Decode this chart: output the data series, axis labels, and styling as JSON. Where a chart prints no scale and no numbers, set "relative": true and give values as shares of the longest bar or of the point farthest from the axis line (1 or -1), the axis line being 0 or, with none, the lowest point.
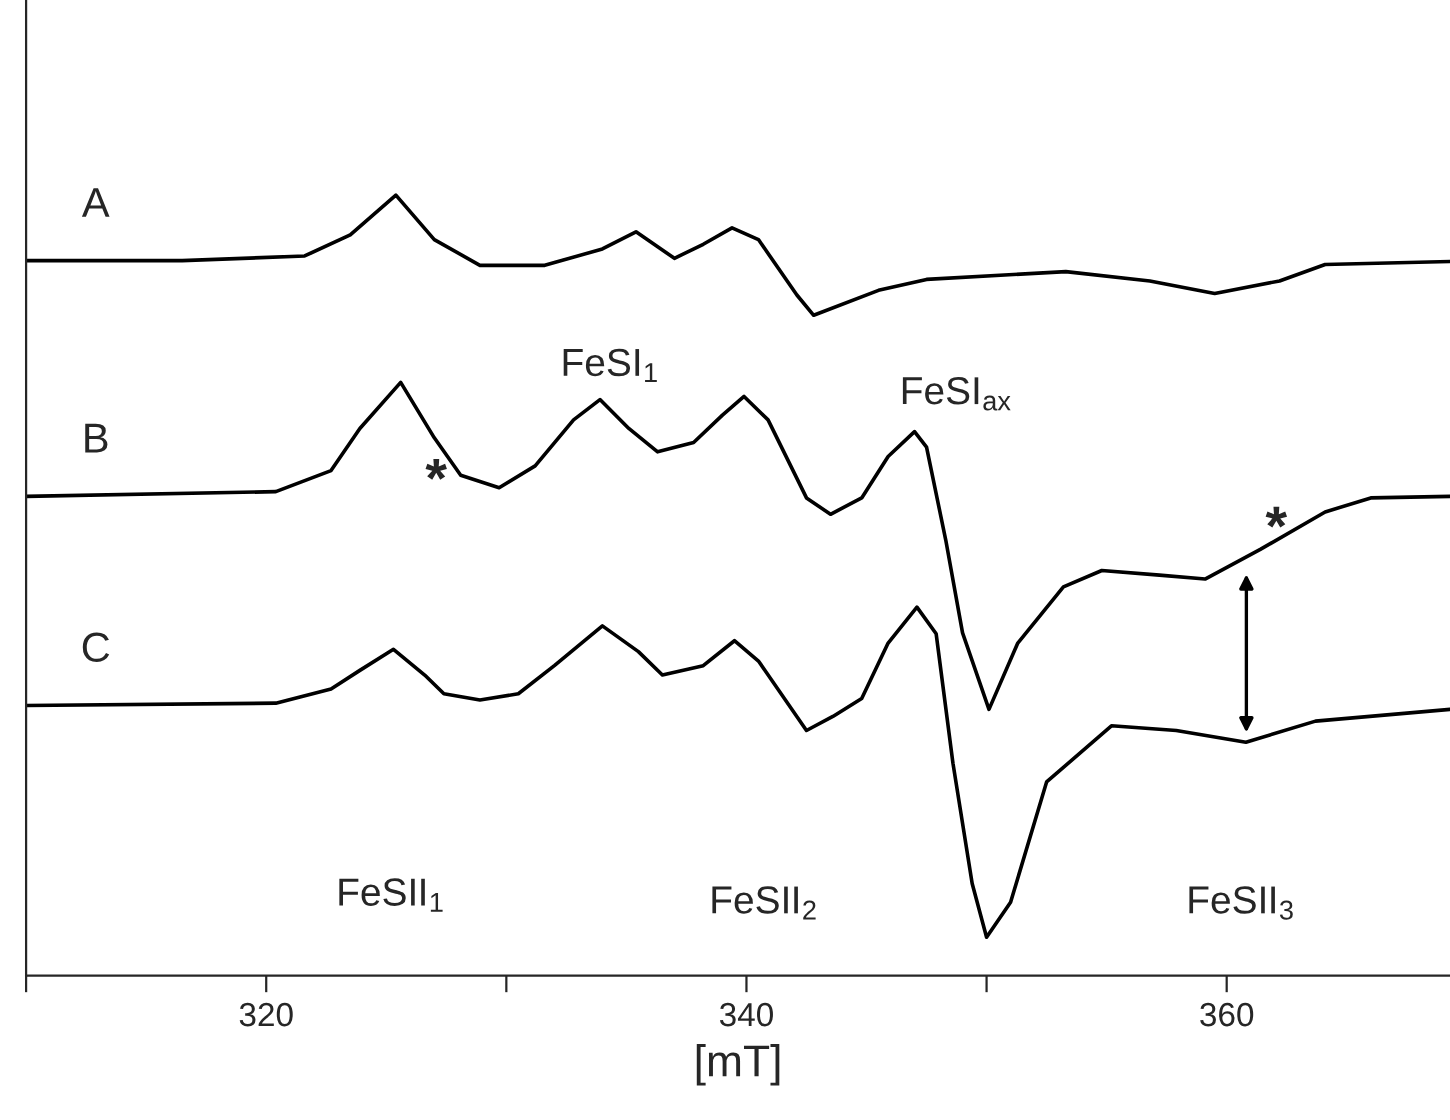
{
  "chart_data": {
    "type": "line",
    "relative": true,
    "xlabel": "[mT]",
    "xlim": [
      310,
      369.3
    ],
    "xticks": [
      {
        "value": 310,
        "label": null
      },
      320,
      {
        "value": 330,
        "label": null
      },
      340,
      {
        "value": 350,
        "label": null
      },
      360
    ],
    "grid": false,
    "legend": false,
    "marker": "none",
    "line_style": "solid",
    "tick_labels": "x",
    "series": [
      {
        "name": "A",
        "color": "#000000",
        "x": [
          310.0,
          316.5,
          321.6,
          323.5,
          325.4,
          327.0,
          328.9,
          331.6,
          334.0,
          335.4,
          337.0,
          338.2,
          339.4,
          340.5,
          342.1,
          342.8,
          345.5,
          347.5,
          353.3,
          356.8,
          359.5,
          362.2,
          364.1,
          369.3
        ],
        "values": [
          0.916,
          0.916,
          0.922,
          0.949,
          1.0,
          0.943,
          0.91,
          0.91,
          0.931,
          0.953,
          0.919,
          0.937,
          0.958,
          0.943,
          0.872,
          0.846,
          0.878,
          0.892,
          0.902,
          0.89,
          0.874,
          0.89,
          0.911,
          0.915
        ]
      },
      {
        "name": "B",
        "color": "#000000",
        "x": [
          310.0,
          320.4,
          322.7,
          323.9,
          325.6,
          327.0,
          328.1,
          329.7,
          331.2,
          332.8,
          333.9,
          335.1,
          336.3,
          337.8,
          339.0,
          339.9,
          340.9,
          342.5,
          343.5,
          344.8,
          345.9,
          347.0,
          347.5,
          348.3,
          349.0,
          350.1,
          351.3,
          353.2,
          354.8,
          357.2,
          359.1,
          361.4,
          364.1,
          366.0,
          369.3
        ],
        "values": [
          0.614,
          0.62,
          0.647,
          0.701,
          0.76,
          0.689,
          0.641,
          0.625,
          0.653,
          0.712,
          0.738,
          0.701,
          0.671,
          0.683,
          0.718,
          0.742,
          0.712,
          0.612,
          0.591,
          0.612,
          0.665,
          0.697,
          0.677,
          0.558,
          0.439,
          0.341,
          0.426,
          0.498,
          0.519,
          0.513,
          0.508,
          0.546,
          0.594,
          0.612,
          0.614
        ]
      },
      {
        "name": "C",
        "color": "#000000",
        "x": [
          310.0,
          320.4,
          322.7,
          323.9,
          325.3,
          326.6,
          327.4,
          328.9,
          330.5,
          332.0,
          334.0,
          335.5,
          336.5,
          338.2,
          339.5,
          340.5,
          342.5,
          343.6,
          344.8,
          345.9,
          347.1,
          347.9,
          348.6,
          349.4,
          350.0,
          351.0,
          352.5,
          355.2,
          357.9,
          360.8,
          363.7,
          369.3
        ],
        "values": [
          0.346,
          0.349,
          0.367,
          0.391,
          0.418,
          0.385,
          0.361,
          0.353,
          0.361,
          0.397,
          0.448,
          0.415,
          0.385,
          0.397,
          0.429,
          0.403,
          0.314,
          0.332,
          0.355,
          0.426,
          0.472,
          0.438,
          0.272,
          0.118,
          0.049,
          0.094,
          0.248,
          0.32,
          0.314,
          0.299,
          0.326,
          0.341
        ]
      }
    ],
    "annotations": [
      "FeSI$_{1}$",
      "FeSI$_{ax}$",
      "FeSII$_{1}$",
      "FeSII$_{2}$",
      "FeSII$_{3}$",
      "*",
      "*"
    ]
  }
}
